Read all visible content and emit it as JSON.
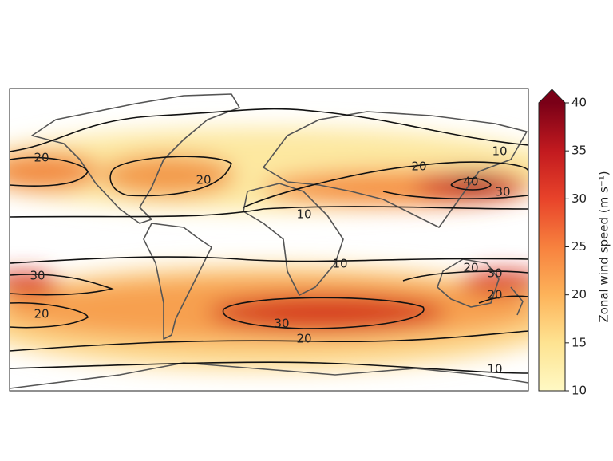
{
  "map": {
    "contour_labels": [
      20,
      20,
      20,
      10,
      40,
      30,
      10,
      10,
      20,
      30,
      30,
      20,
      20,
      30,
      20,
      10
    ]
  },
  "colorbar": {
    "label": "Zonal wind speed (m s⁻¹)",
    "lim": [
      10,
      40
    ],
    "ticks": [
      10,
      15,
      20,
      25,
      30,
      35,
      40
    ],
    "colors": [
      "#fff9c4",
      "#fee391",
      "#fdb35a",
      "#f7813e",
      "#e8432a",
      "#c21a1f",
      "#7a0017"
    ]
  }
}
